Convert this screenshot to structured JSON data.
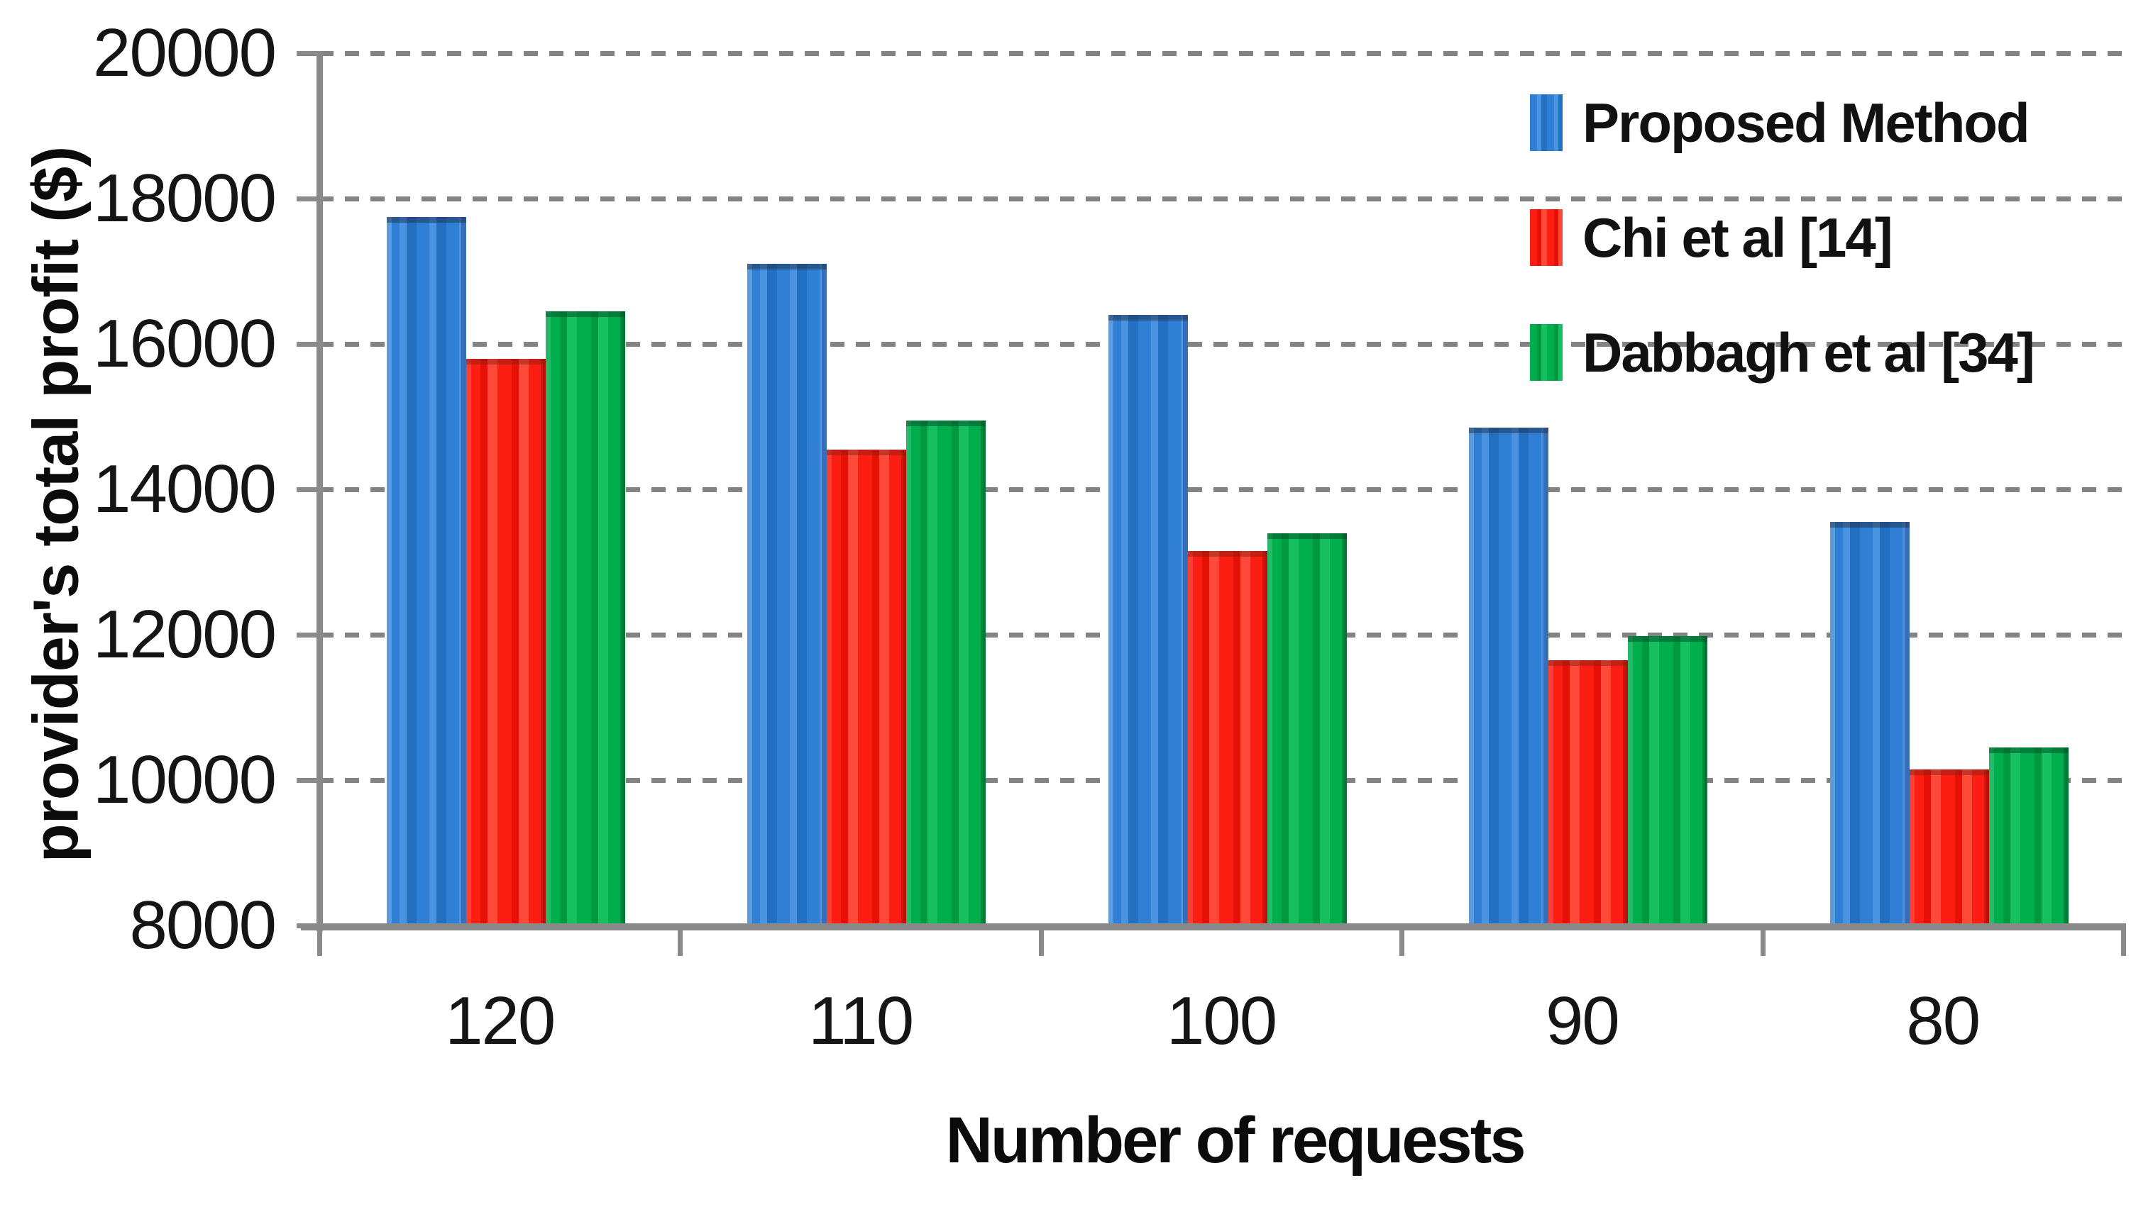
{
  "chart_data": {
    "type": "bar",
    "title": "",
    "xlabel": "Number of requests",
    "ylabel": "provider's total profit ($)",
    "categories": [
      "120",
      "110",
      "100",
      "90",
      "80"
    ],
    "series": [
      {
        "name": "Proposed Method",
        "color": "#2f7fd4",
        "values": [
          17750,
          17100,
          16400,
          14850,
          13550
        ]
      },
      {
        "name": "Chi et al [14]",
        "color": "#fc1e12",
        "values": [
          15800,
          14550,
          13150,
          11650,
          10150
        ]
      },
      {
        "name": "Dabbagh et al [34]",
        "color": "#00ae4e",
        "values": [
          16450,
          14950,
          13400,
          11980,
          10450
        ]
      }
    ],
    "ylim": [
      8000,
      20000
    ],
    "ytick_step": 2000,
    "yticks": [
      "20000",
      "18000",
      "16000",
      "14000",
      "12000",
      "10000",
      "8000"
    ],
    "grid": "horizontal-dashed",
    "legend_position": "top-right"
  },
  "colors": {
    "axis": "#8a8a8a",
    "gridline": "#838383",
    "text": "#111111",
    "background": "#ffffff"
  }
}
